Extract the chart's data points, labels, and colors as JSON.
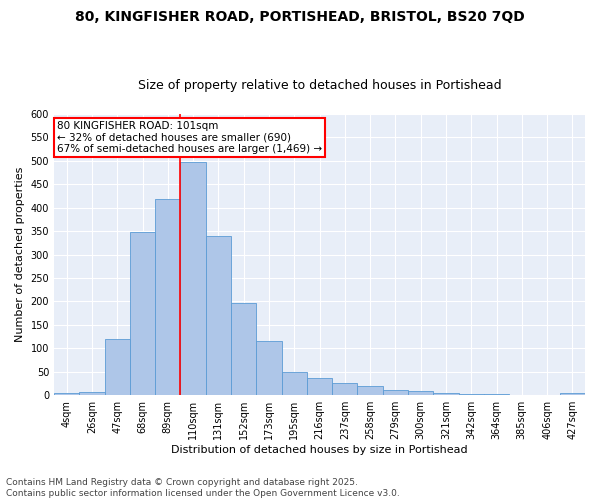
{
  "title_line1": "80, KINGFISHER ROAD, PORTISHEAD, BRISTOL, BS20 7QD",
  "title_line2": "Size of property relative to detached houses in Portishead",
  "xlabel": "Distribution of detached houses by size in Portishead",
  "ylabel": "Number of detached properties",
  "categories": [
    "4sqm",
    "26sqm",
    "47sqm",
    "68sqm",
    "89sqm",
    "110sqm",
    "131sqm",
    "152sqm",
    "173sqm",
    "195sqm",
    "216sqm",
    "237sqm",
    "258sqm",
    "279sqm",
    "300sqm",
    "321sqm",
    "342sqm",
    "364sqm",
    "385sqm",
    "406sqm",
    "427sqm"
  ],
  "values": [
    5,
    6,
    120,
    348,
    418,
    497,
    340,
    197,
    115,
    50,
    37,
    25,
    20,
    12,
    9,
    5,
    3,
    2,
    1,
    1,
    4
  ],
  "bar_color": "#aec6e8",
  "bar_edge_color": "#5b9bd5",
  "background_color": "#e8eef8",
  "grid_color": "#ffffff",
  "property_label": "80 KINGFISHER ROAD: 101sqm",
  "pct_smaller": 32,
  "count_smaller": 690,
  "pct_larger": 67,
  "count_larger": 1469,
  "vline_x_index": 4.5,
  "ylim": [
    0,
    600
  ],
  "yticks": [
    0,
    50,
    100,
    150,
    200,
    250,
    300,
    350,
    400,
    450,
    500,
    550,
    600
  ],
  "footer_line1": "Contains HM Land Registry data © Crown copyright and database right 2025.",
  "footer_line2": "Contains public sector information licensed under the Open Government Licence v3.0.",
  "title_fontsize": 10,
  "subtitle_fontsize": 9,
  "axis_label_fontsize": 8,
  "tick_fontsize": 7,
  "annotation_fontsize": 7.5,
  "footer_fontsize": 6.5
}
